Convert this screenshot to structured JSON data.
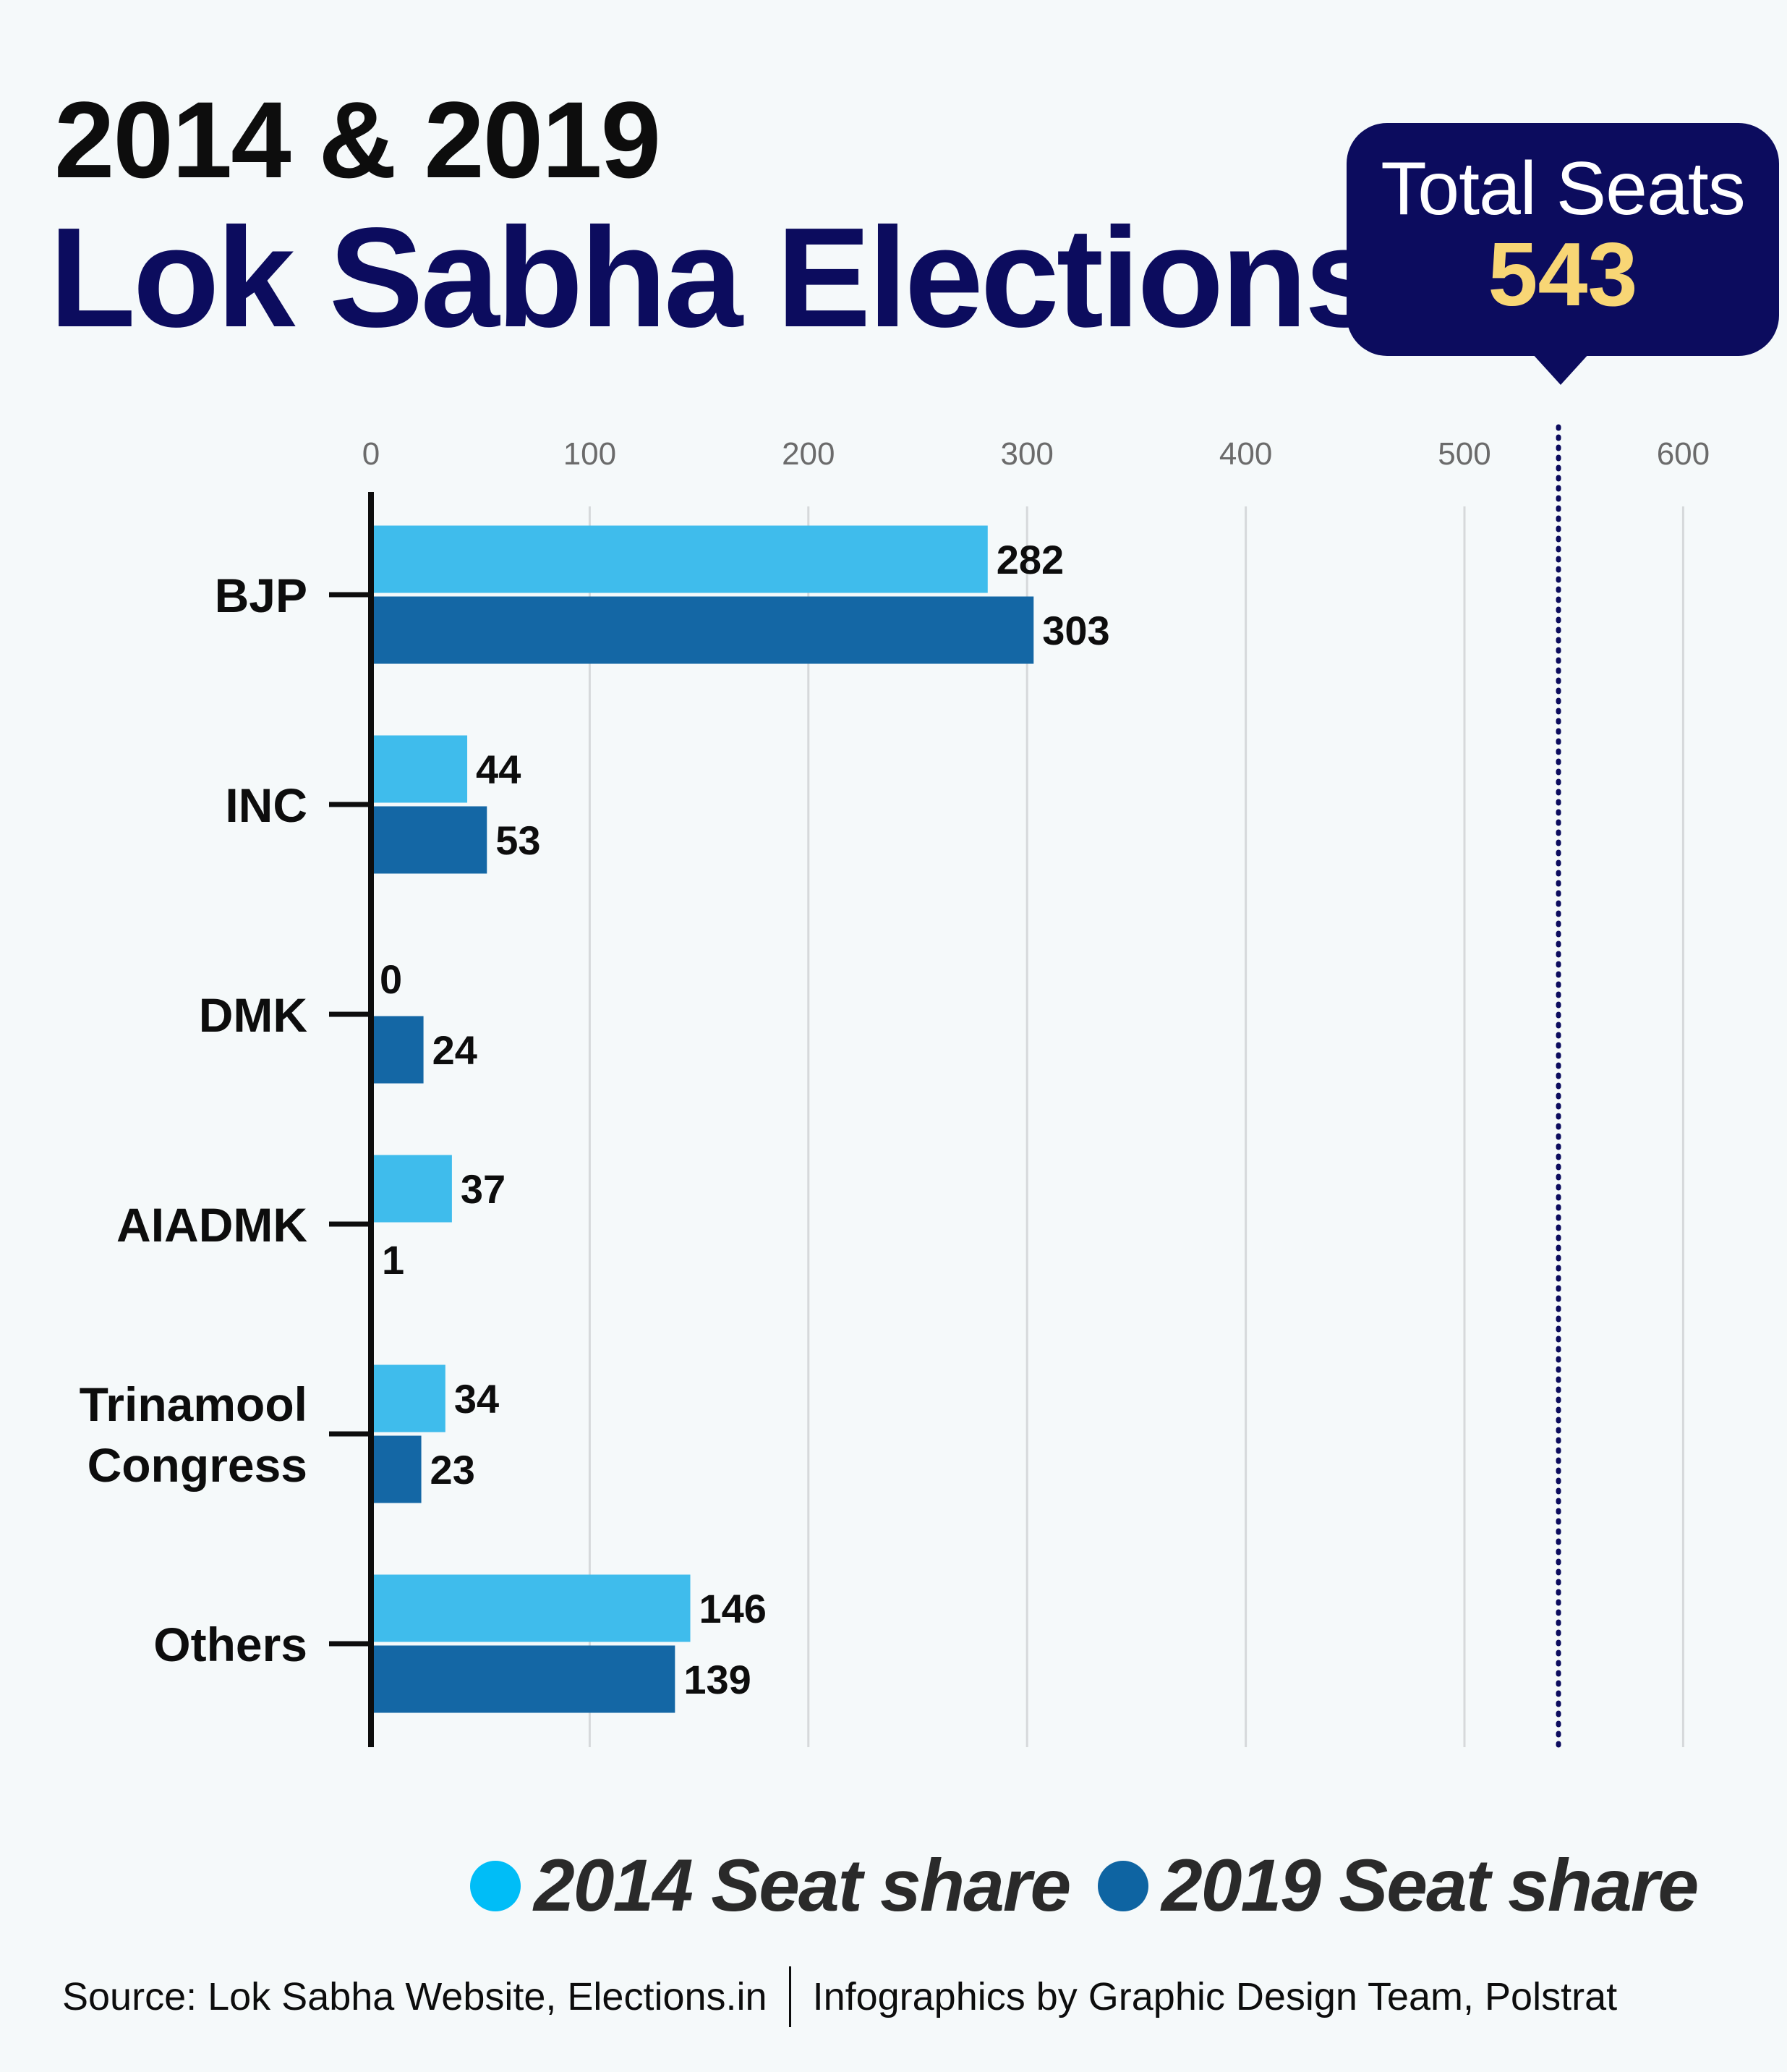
{
  "header": {
    "title_line1": "2014 & 2019",
    "title_line2": "Lok Sabha Elections"
  },
  "total_box": {
    "label": "Total Seats",
    "value": "543"
  },
  "chart_data": {
    "type": "bar",
    "orientation": "horizontal",
    "categories": [
      "BJP",
      "INC",
      "DMK",
      "AIADMK",
      "Trinamool Congress",
      "Others"
    ],
    "category_lines": [
      [
        "BJP"
      ],
      [
        "INC"
      ],
      [
        "DMK"
      ],
      [
        "AIADMK"
      ],
      [
        "Trinamool",
        "Congress"
      ],
      [
        "Others"
      ]
    ],
    "series": [
      {
        "name": "2014 Seat share",
        "values": [
          282,
          44,
          0,
          37,
          34,
          146
        ],
        "color": "#3fbcec"
      },
      {
        "name": "2019 Seat share",
        "values": [
          303,
          53,
          24,
          1,
          23,
          139
        ],
        "color": "#1467a5"
      }
    ],
    "xlim": [
      0,
      600
    ],
    "xticks": [
      "0",
      "100",
      "200",
      "300",
      "400",
      "500",
      "600"
    ],
    "reference_line": {
      "value": 543,
      "style": "dotted",
      "color": "#0c0c5e"
    },
    "grid": true,
    "legend_position": "bottom-right",
    "data_labels": true
  },
  "legend": {
    "items": [
      {
        "label": "2014 Seat share",
        "color": "#00bdf7"
      },
      {
        "label": "2019 Seat share",
        "color": "#0e64a2"
      }
    ]
  },
  "footer": {
    "source": "Source: Lok Sabha Website, Elections.in",
    "credit": "Infographics by Graphic Design Team, Polstrat"
  },
  "colors": {
    "background": "#f5f9fa",
    "navy": "#0c0c5e",
    "accent_gold": "#f8d675"
  }
}
